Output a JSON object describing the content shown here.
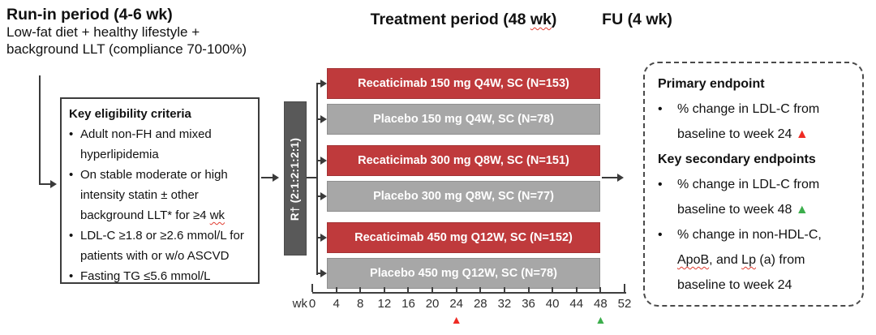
{
  "colors": {
    "arm_red": "#bf3a3c",
    "arm_red_border": "#a23335",
    "arm_gray": "#a7a7a7",
    "arm_gray_border": "#8f8f8f",
    "randomization_bar": "#595959",
    "line": "#3a3a3a",
    "marker_red": "#ee2b24",
    "marker_green": "#3cae4c"
  },
  "run_in": {
    "title": "Run-in period (4-6 wk)",
    "line1": "Low-fat diet + healthy lifestyle +",
    "line2": "background LLT (compliance 70-100%)"
  },
  "headers": {
    "treatment_segments": [
      {
        "t": "Treatment period (48 "
      },
      {
        "t": "wk",
        "wavy": true
      },
      {
        "t": ")"
      }
    ],
    "fu": "FU (4 wk)"
  },
  "eligibility": {
    "title": "Key eligibility criteria",
    "bullet_glyph": "•",
    "bullets": [
      {
        "segs": [
          {
            "t": "Adult non-FH and mixed hyperlipidemia"
          }
        ]
      },
      {
        "segs": [
          {
            "t": "On stable moderate or high intensity statin ± other background LLT* for ≥4 "
          },
          {
            "t": "wk",
            "wavy": true
          }
        ]
      },
      {
        "segs": [
          {
            "t": "LDL-C ≥1.8 or ≥2.6 mmol/L for patients with or w/o ASCVD"
          }
        ]
      },
      {
        "segs": [
          {
            "t": "Fasting TG ≤5.6 mmol/L"
          }
        ]
      }
    ]
  },
  "randomization_label": "R† (2:1:2:1:2:1)",
  "arms": [
    {
      "label": "Recaticimab 150 mg Q4W, SC (N=153)",
      "color": "red"
    },
    {
      "label": "Placebo 150 mg Q4W, SC (N=78)",
      "color": "gray"
    },
    {
      "label": "Recaticimab 300 mg Q8W, SC (N=151)",
      "color": "red"
    },
    {
      "label": "Placebo 300 mg Q8W, SC (N=77)",
      "color": "gray"
    },
    {
      "label": "Recaticimab 450 mg Q12W, SC (N=152)",
      "color": "red"
    },
    {
      "label": "Placebo 450 mg Q12W, SC (N=78)",
      "color": "gray"
    }
  ],
  "axis": {
    "unit_label": "wk",
    "tick_labels": [
      "0",
      "4",
      "8",
      "12",
      "16",
      "20",
      "24",
      "28",
      "32",
      "36",
      "40",
      "44",
      "48",
      "52"
    ],
    "markers": [
      {
        "tick_index": 6,
        "color": "red",
        "glyph": "▲"
      },
      {
        "tick_index": 12,
        "color": "green",
        "glyph": "▲"
      }
    ]
  },
  "endpoints": {
    "items": [
      {
        "type": "header",
        "text": "Primary endpoint"
      },
      {
        "type": "bullet",
        "segs": [
          {
            "t": "% change in LDL-C from baseline to week 24 "
          }
        ],
        "marker": "red",
        "marker_glyph": "▲"
      },
      {
        "type": "header",
        "text": "Key secondary endpoints"
      },
      {
        "type": "bullet",
        "segs": [
          {
            "t": "% change in LDL-C from baseline to week 48 "
          }
        ],
        "marker": "green",
        "marker_glyph": "▲"
      },
      {
        "type": "bullet",
        "segs": [
          {
            "t": "% change in non-HDL-C, "
          },
          {
            "t": "ApoB",
            "wavy": true
          },
          {
            "t": ", and "
          },
          {
            "t": "Lp",
            "wavy": true
          },
          {
            "t": " (a) from baseline to week 24"
          }
        ],
        "marker": null
      }
    ],
    "bullet_glyph": "•"
  }
}
